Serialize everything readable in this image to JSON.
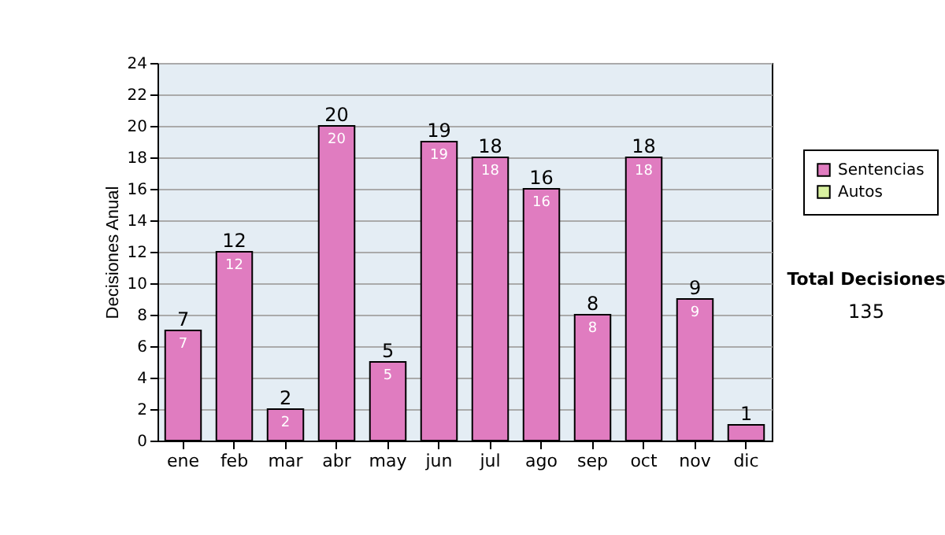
{
  "chart_data": {
    "type": "bar",
    "ylabel": "Decisiones Anual",
    "categories": [
      "ene",
      "feb",
      "mar",
      "abr",
      "may",
      "jun",
      "jul",
      "ago",
      "sep",
      "oct",
      "nov",
      "dic"
    ],
    "series": [
      {
        "name": "Sentencias",
        "color": "#e07cc0",
        "values": [
          7,
          12,
          2,
          20,
          5,
          19,
          18,
          16,
          8,
          18,
          9,
          1
        ],
        "value_labels": [
          "7",
          "12",
          "2",
          "20",
          "5",
          "19",
          "18",
          "16",
          "8",
          "18",
          "9",
          null
        ]
      },
      {
        "name": "Autos",
        "color": "#d8f0a0",
        "values": [
          null,
          null,
          null,
          null,
          null,
          null,
          null,
          null,
          null,
          null,
          null,
          null
        ]
      }
    ],
    "ylim": [
      0,
      24
    ],
    "yticks": [
      0,
      2,
      4,
      6,
      8,
      10,
      12,
      14,
      16,
      18,
      20,
      22,
      24
    ],
    "grid": "y",
    "legend": "right",
    "totals": [
      "7",
      "12",
      "2",
      "20",
      "5",
      "19",
      "18",
      "16",
      "8",
      "18",
      "9",
      "1"
    ],
    "annotations": [
      "Total Decisiones",
      "135"
    ]
  }
}
